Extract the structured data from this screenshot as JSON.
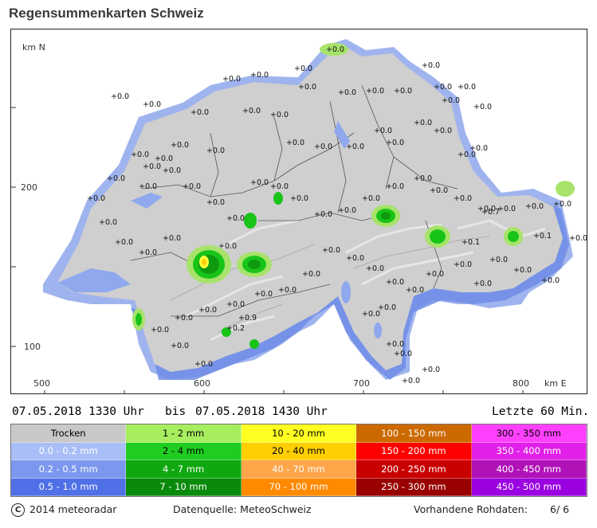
{
  "title": "Regensummenkarten Schweiz",
  "map": {
    "north_label": "km N",
    "east_label": "km E",
    "y_ticks": [
      "200",
      "100"
    ],
    "x_ticks": [
      "500",
      "600",
      "700",
      "800"
    ],
    "value_labels": [
      "0.0",
      "0.0",
      "0.0",
      "0.0",
      "0.0",
      "0.0",
      "0.0",
      "0.0",
      "0.0",
      "0.0",
      "0.0",
      "0.0",
      "0.0",
      "0.0",
      "0.0",
      "0.0",
      "0.0",
      "0.0",
      "0.0",
      "0.0",
      "0.0",
      "0.0",
      "0.0",
      "0.0",
      "0.0",
      "0.0",
      "0.0",
      "0.0",
      "0.0",
      "0.0",
      "0.0",
      "0.0",
      "0.0",
      "0.0",
      "0.0",
      "0.0",
      "0.0",
      "0.0",
      "0.0",
      "0.0",
      "0.0",
      "0.0",
      "0.0",
      "0.0",
      "0.0",
      "0.0",
      "0.0",
      "0.0",
      "0.0",
      "0.0",
      "0.0",
      "0.0",
      "0.0",
      "0.0",
      "0.0",
      "0.0",
      "0.0",
      "0.0",
      "0.0",
      "0.0",
      "0.0",
      "0.0",
      "0.0",
      "0.0",
      "0.0",
      "0.0",
      "0.0",
      "0.0",
      "0.0",
      "0.0",
      "0.0",
      "0.0",
      "0.0",
      "0.0",
      "0.0",
      "0.0",
      "0.0",
      "0.0",
      "0.0",
      "0.0",
      "0.1",
      "0.1",
      "0.7",
      "0.2",
      "0.9",
      "0.0",
      "0.0",
      "0.0",
      "0.0",
      "0.0"
    ],
    "colors": {
      "land": "#cfcfcf",
      "light_rain": "#9fb4ee",
      "mid_rain": "#6e8ce6",
      "heavy_rain": "#4a6ee0",
      "green_light": "#a7e36a",
      "green": "#19c419",
      "yellow": "#ffff3a"
    }
  },
  "timeline": {
    "from": "07.05.2018  1330 Uhr",
    "bis": "bis",
    "to": "07.05.2018  1430 Uhr",
    "period": "Letzte  60 Min."
  },
  "legend": {
    "rows": [
      [
        {
          "label": "Trocken",
          "color": "#c8c8c8",
          "text": "#000000"
        },
        {
          "label": "1 - 2 mm",
          "color": "#a6ee5e",
          "text": "#000000"
        },
        {
          "label": "10 - 20 mm",
          "color": "#ffff22",
          "text": "#000000"
        },
        {
          "label": "100 - 150 mm",
          "color": "#cc6a00",
          "text": "#ffffff"
        },
        {
          "label": "300 - 350 mm",
          "color": "#ff40ff",
          "text": "#000000"
        }
      ],
      [
        {
          "label": "0.0 - 0.2 mm",
          "color": "#a9bef7",
          "text": "#ffffff"
        },
        {
          "label": "2 - 4 mm",
          "color": "#1fcc1f",
          "text": "#000000"
        },
        {
          "label": "20 - 40 mm",
          "color": "#ffce00",
          "text": "#000000"
        },
        {
          "label": "150 - 200 mm",
          "color": "#ff0000",
          "text": "#ffffff"
        },
        {
          "label": "350 - 400 mm",
          "color": "#e020e8",
          "text": "#ffffff"
        }
      ],
      [
        {
          "label": "0.2 - 0.5 mm",
          "color": "#7b98ee",
          "text": "#ffffff"
        },
        {
          "label": "4 - 7 mm",
          "color": "#10a810",
          "text": "#ffffff"
        },
        {
          "label": "40 - 70 mm",
          "color": "#ffa54a",
          "text": "#ffffff"
        },
        {
          "label": "200 - 250 mm",
          "color": "#c80000",
          "text": "#ffffff"
        },
        {
          "label": "400 - 450 mm",
          "color": "#b012b8",
          "text": "#ffffff"
        }
      ],
      [
        {
          "label": "0.5 - 1.0 mm",
          "color": "#4f70e6",
          "text": "#ffffff"
        },
        {
          "label": "7 - 10 mm",
          "color": "#0a8a0a",
          "text": "#ffffff"
        },
        {
          "label": "70 - 100 mm",
          "color": "#ff8a00",
          "text": "#ffffff"
        },
        {
          "label": "250 - 300 mm",
          "color": "#990000",
          "text": "#ffffff"
        },
        {
          "label": "450 - 500 mm",
          "color": "#9a00e0",
          "text": "#ffffff"
        }
      ]
    ]
  },
  "footer": {
    "copyright_symbol": "C",
    "copyright": "2014  meteoradar",
    "source": "Datenquelle: MeteoSchweiz",
    "rohdaten_label": "Vorhandene Rohdaten:",
    "rohdaten_value": "6/  6"
  }
}
